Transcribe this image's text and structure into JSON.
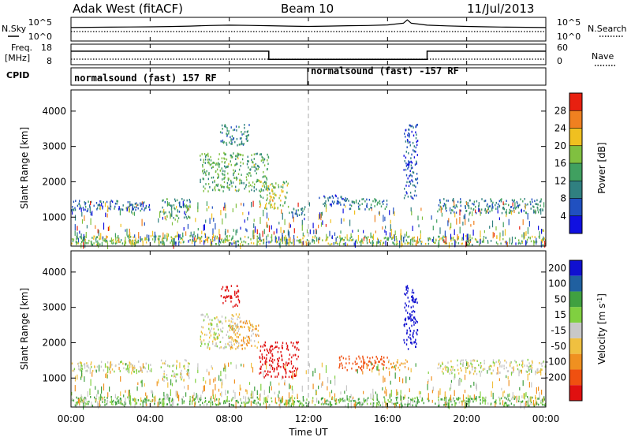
{
  "header": {
    "station": "Adak West (fitACF)",
    "beam": "Beam 10",
    "date": "11/Jul/2013"
  },
  "summary_panel": {
    "left_top_label": "N.Sky",
    "left_freq_label": "Freq.",
    "left_freq_unit": "[MHz]",
    "cpid_label": "CPID",
    "right_top_label": "N.Search",
    "right_nave_label": "Nave",
    "nsky_ticks": [
      "10^5",
      "10^0"
    ],
    "nsearch_ticks": [
      "10^5",
      "10^0"
    ],
    "freq_ticks": [
      "18",
      "8"
    ],
    "nave_ticks": [
      "60",
      "0"
    ],
    "cpid_segments": [
      "normalsound (fast) 157 RF",
      "normalsound (fast) -157 RF"
    ]
  },
  "power_colorbar": {
    "label": "Power [dB]",
    "ticks": [
      "4",
      "8",
      "12",
      "16",
      "20",
      "24",
      "28"
    ]
  },
  "velocity_colorbar": {
    "label": "Velocity [m s^-1]",
    "label_main": "Velocity [m s",
    "label_sup": "-1",
    "label_end": "]",
    "ticks": [
      "200",
      "100",
      "50",
      "15",
      "-15",
      "-50",
      "-100",
      "-200"
    ]
  },
  "axes": {
    "ylabel": "Slant Range [km]",
    "xlabel": "Time UT",
    "yticks": [
      "1000",
      "2000",
      "3000",
      "4000"
    ],
    "xticks": [
      "00:00",
      "04:00",
      "08:00",
      "12:00",
      "16:00",
      "20:00",
      "00:00"
    ]
  },
  "chart_data": [
    {
      "type": "line",
      "title": "N.Sky / N.Search",
      "x_range_hours": [
        0,
        24
      ],
      "yscale": "log",
      "ylim": [
        1,
        100000
      ],
      "series": [
        {
          "name": "N.Sky",
          "x": [
            0,
            1,
            2,
            3,
            4,
            5,
            6,
            7,
            8,
            9,
            10,
            11,
            12,
            13,
            14,
            15,
            16,
            16.8,
            17,
            17.2,
            18,
            19,
            20,
            21,
            22,
            23,
            24
          ],
          "values": [
            800,
            900,
            1000,
            1100,
            1200,
            1400,
            1800,
            2500,
            3000,
            2600,
            2200,
            1800,
            1500,
            1800,
            2200,
            2500,
            3500,
            9000,
            60000,
            9000,
            3000,
            2000,
            1500,
            1200,
            1000,
            900,
            800
          ]
        }
      ]
    },
    {
      "type": "line",
      "title": "Freq. / Nave",
      "x_range_hours": [
        0,
        24
      ],
      "ylim": [
        8,
        18
      ],
      "series": [
        {
          "name": "Freq.",
          "x": [
            0,
            10,
            10,
            18,
            18,
            24
          ],
          "values": [
            15,
            15,
            10.5,
            10.5,
            15,
            15
          ]
        },
        {
          "name": "Nave",
          "x": [
            0,
            24
          ],
          "values": [
            14,
            14
          ]
        }
      ]
    },
    {
      "type": "heatmap",
      "title": "Power [dB]",
      "xlabel": "Time UT",
      "ylabel": "Slant Range [km]",
      "x_range_hours": [
        0,
        24
      ],
      "ylim": [
        180,
        4600
      ],
      "clim": [
        0,
        30
      ],
      "bands": [
        {
          "t0": 0.0,
          "t1": 4.0,
          "r0": 1150,
          "r1": 1450,
          "v": 8
        },
        {
          "t0": 4.5,
          "t1": 6.0,
          "r0": 900,
          "r1": 1500,
          "v": 12
        },
        {
          "t0": 6.5,
          "t1": 10.0,
          "r0": 1700,
          "r1": 2800,
          "v": 14
        },
        {
          "t0": 7.5,
          "t1": 9.0,
          "r0": 3000,
          "r1": 3600,
          "v": 10
        },
        {
          "t0": 9.5,
          "t1": 11.0,
          "r0": 1200,
          "r1": 2000,
          "v": 18
        },
        {
          "t0": 11.0,
          "t1": 11.8,
          "r0": 1000,
          "r1": 1300,
          "v": 10
        },
        {
          "t0": 12.5,
          "t1": 14.0,
          "r0": 1300,
          "r1": 1600,
          "v": 6
        },
        {
          "t0": 14.0,
          "t1": 16.0,
          "r0": 1200,
          "r1": 1500,
          "v": 10
        },
        {
          "t0": 16.8,
          "t1": 17.5,
          "r0": 1500,
          "r1": 3600,
          "v": 6
        },
        {
          "t0": 18.5,
          "t1": 24.0,
          "r0": 1100,
          "r1": 1500,
          "v": 10
        },
        {
          "t0": 0.0,
          "t1": 24.0,
          "r0": 200,
          "r1": 450,
          "v": 16
        }
      ]
    },
    {
      "type": "heatmap",
      "title": "Velocity [m s^-1]",
      "xlabel": "Time UT",
      "ylabel": "Slant Range [km]",
      "x_range_hours": [
        0,
        24
      ],
      "ylim": [
        180,
        4600
      ],
      "clim": [
        -250,
        250
      ],
      "bands": [
        {
          "t0": 0.0,
          "t1": 4.0,
          "r0": 1150,
          "r1": 1450,
          "v": 0
        },
        {
          "t0": 4.5,
          "t1": 6.0,
          "r0": 900,
          "r1": 1500,
          "v": 0
        },
        {
          "t0": 6.5,
          "t1": 8.5,
          "r0": 1800,
          "r1": 2800,
          "v": 0
        },
        {
          "t0": 8.0,
          "t1": 9.5,
          "r0": 1800,
          "r1": 2600,
          "v": -40
        },
        {
          "t0": 7.5,
          "t1": 8.5,
          "r0": 3000,
          "r1": 3600,
          "v": -200
        },
        {
          "t0": 9.5,
          "t1": 11.5,
          "r0": 1000,
          "r1": 2000,
          "v": -220
        },
        {
          "t0": 13.5,
          "t1": 16.0,
          "r0": 1200,
          "r1": 1600,
          "v": -120
        },
        {
          "t0": 16.0,
          "t1": 17.0,
          "r0": 1200,
          "r1": 1500,
          "v": -40
        },
        {
          "t0": 16.8,
          "t1": 17.5,
          "r0": 1800,
          "r1": 3600,
          "v": 200
        },
        {
          "t0": 18.5,
          "t1": 24.0,
          "r0": 1100,
          "r1": 1500,
          "v": 0
        },
        {
          "t0": 0.0,
          "t1": 24.0,
          "r0": 200,
          "r1": 450,
          "v": 40
        }
      ]
    }
  ]
}
